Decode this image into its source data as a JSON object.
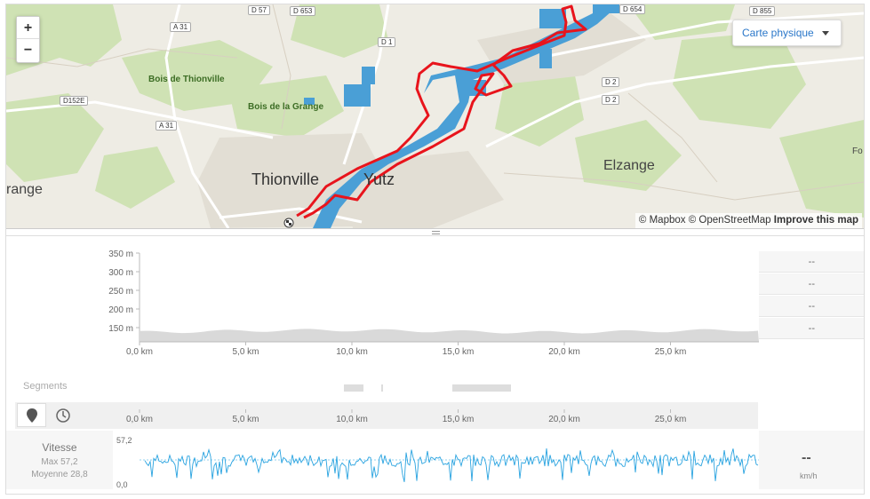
{
  "map": {
    "zoom_in": "+",
    "zoom_out": "−",
    "layer_select": "Carte physique",
    "attribution": {
      "mapbox": "© Mapbox",
      "osm": "© OpenStreetMap",
      "improve": "Improve this map"
    },
    "roads": [
      "D 57",
      "D 653",
      "D 654",
      "D 855",
      "A 31",
      "D 1",
      "D152E",
      "A 31",
      "D 2",
      "D 2"
    ],
    "woods": [
      "Bois de Thionville",
      "Bois de la Grange"
    ],
    "cities": [
      "Thionville",
      "Yutz",
      "Elzange",
      "range",
      "Fo"
    ]
  },
  "elevation": {
    "y_ticks": [
      "350 m",
      "300 m",
      "250 m",
      "200 m",
      "150 m"
    ],
    "side_values": [
      "--",
      "--",
      "--",
      "--"
    ]
  },
  "x_ticks": [
    "0,0 km",
    "5,0 km",
    "10,0 km",
    "15,0 km",
    "20,0 km",
    "25,0 km"
  ],
  "segments": {
    "title": "Segments"
  },
  "toolbar": {
    "distance_icon": "map-marker-icon",
    "time_icon": "clock-icon"
  },
  "speed": {
    "title": "Vitesse",
    "max": "Max 57,2",
    "avg": "Moyenne 28,8",
    "y_max": "57,2",
    "y_min": "0,0",
    "current": "--",
    "unit": "km/h"
  },
  "colors": {
    "route": "#e8141c",
    "water": "#4a9fd6",
    "speed_line": "#29a3e0",
    "elevation_fill": "#d9d9d9"
  }
}
